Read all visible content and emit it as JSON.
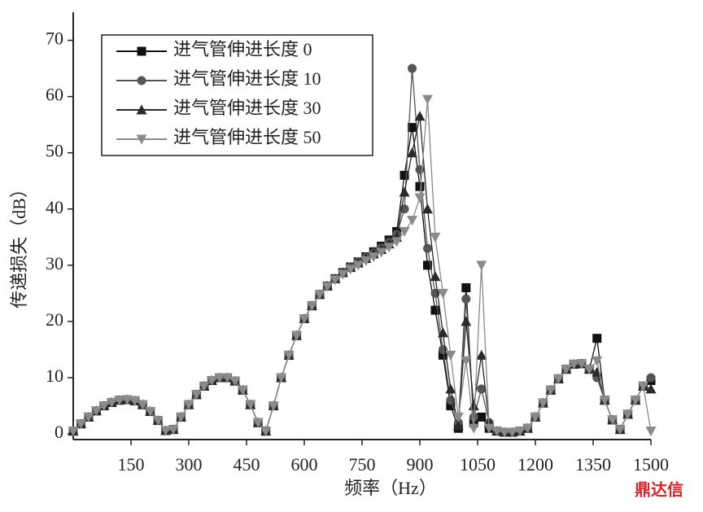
{
  "chart_data": {
    "type": "line",
    "xlabel": "频率（Hz）",
    "ylabel": "传递损失（dB）",
    "watermark": "鼎达信",
    "xlim": [
      0,
      1500
    ],
    "xticks": [
      150,
      300,
      450,
      600,
      750,
      900,
      1050,
      1200,
      1350,
      1500
    ],
    "ylim": [
      -1,
      75
    ],
    "yticks": [
      0,
      10,
      20,
      30,
      40,
      50,
      60,
      70
    ],
    "legend": "upper left",
    "grid": false,
    "x": [
      0,
      20,
      40,
      60,
      80,
      100,
      120,
      140,
      160,
      180,
      200,
      220,
      240,
      260,
      280,
      300,
      320,
      340,
      360,
      380,
      400,
      420,
      440,
      460,
      480,
      500,
      520,
      540,
      560,
      580,
      600,
      620,
      640,
      660,
      680,
      700,
      720,
      740,
      760,
      780,
      800,
      820,
      840,
      860,
      880,
      900,
      920,
      940,
      960,
      980,
      1000,
      1020,
      1040,
      1060,
      1080,
      1100,
      1120,
      1140,
      1160,
      1180,
      1200,
      1220,
      1240,
      1260,
      1280,
      1300,
      1320,
      1340,
      1360,
      1380,
      1400,
      1420,
      1440,
      1460,
      1480,
      1500
    ],
    "series": [
      {
        "name": "进气管伸进长度 0",
        "color": "#111111",
        "marker": "square",
        "values": [
          0.5,
          1.8,
          3.0,
          4.1,
          5.0,
          5.6,
          6.0,
          6.1,
          5.9,
          5.2,
          4.0,
          2.4,
          0.6,
          0.8,
          3.0,
          5.2,
          7.0,
          8.5,
          9.5,
          10.0,
          10.0,
          9.4,
          7.8,
          5.2,
          2.0,
          0.5,
          5.0,
          10.0,
          14.0,
          17.5,
          20.5,
          22.8,
          24.8,
          26.3,
          27.6,
          28.7,
          29.7,
          30.6,
          31.5,
          32.4,
          33.4,
          34.5,
          36.0,
          46,
          54.5,
          44,
          30,
          22,
          14,
          5,
          1,
          26,
          2,
          3,
          1,
          0.5,
          0.3,
          0.3,
          0.5,
          1.0,
          3.0,
          5.5,
          7.8,
          9.8,
          11.5,
          12.4,
          12.5,
          11.5,
          17,
          6,
          2.5,
          0.8,
          3.5,
          6,
          8.5,
          9.5
        ]
      },
      {
        "name": "进气管伸进长度 10",
        "color": "#555555",
        "marker": "circle",
        "values": [
          0.5,
          1.8,
          3.0,
          4.1,
          5.0,
          5.6,
          6.0,
          6.1,
          5.9,
          5.2,
          4.0,
          2.4,
          0.6,
          0.8,
          3.0,
          5.2,
          7.0,
          8.5,
          9.5,
          10.0,
          10.0,
          9.4,
          7.8,
          5.2,
          2.0,
          0.5,
          5.0,
          10.0,
          14.0,
          17.5,
          20.5,
          22.8,
          24.8,
          26.3,
          27.6,
          28.7,
          29.7,
          30.6,
          31.4,
          32.2,
          33.1,
          34.1,
          35.5,
          40,
          65,
          47,
          33,
          25,
          15,
          6,
          2,
          24,
          3,
          8,
          2,
          0.5,
          0.3,
          0.3,
          0.5,
          1.0,
          3.0,
          5.5,
          7.8,
          9.8,
          11.5,
          12.4,
          12.5,
          11.5,
          10,
          6,
          2.5,
          0.8,
          3.5,
          6,
          8.5,
          10.0
        ]
      },
      {
        "name": "进气管伸进长度 30",
        "color": "#2a2a2a",
        "marker": "triangle-up",
        "values": [
          0.5,
          1.8,
          3.0,
          4.1,
          5.0,
          5.6,
          6.0,
          6.1,
          5.9,
          5.2,
          4.0,
          2.4,
          0.6,
          0.8,
          3.0,
          5.2,
          7.0,
          8.5,
          9.5,
          10.0,
          10.0,
          9.4,
          7.8,
          5.2,
          2.0,
          0.5,
          5.0,
          10.0,
          14.0,
          17.5,
          20.5,
          22.8,
          24.8,
          26.3,
          27.6,
          28.7,
          29.6,
          30.4,
          31.2,
          32.0,
          32.8,
          33.8,
          35.0,
          43,
          50,
          56.5,
          40,
          28,
          18,
          8,
          1.5,
          20,
          5,
          14,
          2,
          0.5,
          0.3,
          0.3,
          0.5,
          1.0,
          3.0,
          5.5,
          7.8,
          9.8,
          11.5,
          12.4,
          12.5,
          11.5,
          11,
          6,
          2.5,
          0.8,
          3.5,
          6,
          8.5,
          8.0
        ]
      },
      {
        "name": "进气管伸进长度 50",
        "color": "#8a8a8a",
        "marker": "triangle-down",
        "values": [
          0.5,
          1.8,
          3.0,
          4.1,
          5.0,
          5.6,
          6.0,
          6.1,
          5.9,
          5.2,
          4.0,
          2.4,
          0.6,
          0.8,
          3.0,
          5.2,
          7.0,
          8.5,
          9.5,
          10.0,
          10.0,
          9.4,
          7.8,
          5.2,
          2.0,
          0.5,
          5.0,
          10.0,
          14.0,
          17.5,
          20.5,
          22.8,
          24.8,
          26.2,
          27.4,
          28.4,
          29.3,
          30.0,
          30.8,
          31.5,
          32.3,
          33.2,
          34.2,
          36,
          38,
          42,
          59.5,
          35,
          25,
          14,
          3,
          13,
          1,
          30,
          1,
          0.5,
          0.3,
          0.3,
          0.5,
          1.0,
          3.0,
          5.5,
          7.8,
          9.8,
          11.5,
          12.4,
          12.5,
          11.5,
          13,
          6,
          2.5,
          0.8,
          3.5,
          6,
          8.5,
          0.5
        ]
      }
    ]
  }
}
